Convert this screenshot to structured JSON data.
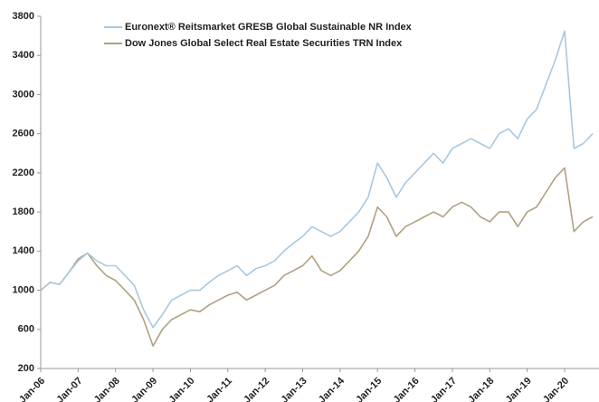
{
  "chart_data": {
    "type": "line",
    "categories": [
      "Jan-06",
      null,
      null,
      null,
      "Jan-07",
      null,
      null,
      null,
      "Jan-08",
      null,
      null,
      null,
      "Jan-09",
      null,
      null,
      null,
      "Jan-10",
      null,
      null,
      null,
      "Jan-11",
      null,
      null,
      null,
      "Jan-12",
      null,
      null,
      null,
      "Jan-13",
      null,
      null,
      null,
      "Jan-14",
      null,
      null,
      null,
      "Jan-15",
      null,
      null,
      null,
      "Jan-16",
      null,
      null,
      null,
      "Jan-17",
      null,
      null,
      null,
      "Jan-18",
      null,
      null,
      null,
      "Jan-19",
      null,
      null,
      null,
      "Jan-20",
      null,
      null,
      null
    ],
    "series": [
      {
        "name": "Euronext® Reitsmarket GRESB Global Sustainable NR Index",
        "color": "#a9c8e0",
        "values": [
          1000,
          1080,
          1060,
          1180,
          1300,
          1380,
          1300,
          1250,
          1250,
          1150,
          1050,
          800,
          620,
          750,
          900,
          950,
          1000,
          1000,
          1080,
          1150,
          1200,
          1250,
          1150,
          1220,
          1250,
          1300,
          1400,
          1480,
          1550,
          1650,
          1600,
          1550,
          1600,
          1700,
          1800,
          1950,
          2300,
          2150,
          1950,
          2100,
          2200,
          2300,
          2400,
          2300,
          2450,
          2500,
          2550,
          2500,
          2450,
          2600,
          2650,
          2550,
          2750,
          2850,
          3100,
          3350,
          3650,
          2450,
          2500,
          2600
        ]
      },
      {
        "name": "Dow Jones Global Select Real Estate Securities TRN Index",
        "color": "#b0a080",
        "values": [
          1000,
          1080,
          1060,
          1180,
          1320,
          1380,
          1250,
          1150,
          1100,
          1000,
          900,
          700,
          430,
          600,
          700,
          750,
          800,
          780,
          850,
          900,
          950,
          980,
          900,
          950,
          1000,
          1050,
          1150,
          1200,
          1250,
          1350,
          1200,
          1150,
          1200,
          1300,
          1400,
          1550,
          1850,
          1750,
          1550,
          1650,
          1700,
          1750,
          1800,
          1750,
          1850,
          1900,
          1850,
          1750,
          1700,
          1800,
          1800,
          1650,
          1800,
          1850,
          2000,
          2150,
          2250,
          1600,
          1700,
          1750
        ]
      }
    ],
    "ylim": [
      200,
      3800
    ],
    "yticks": [
      200,
      600,
      1000,
      1400,
      1800,
      2200,
      2600,
      3000,
      3400,
      3800
    ]
  }
}
